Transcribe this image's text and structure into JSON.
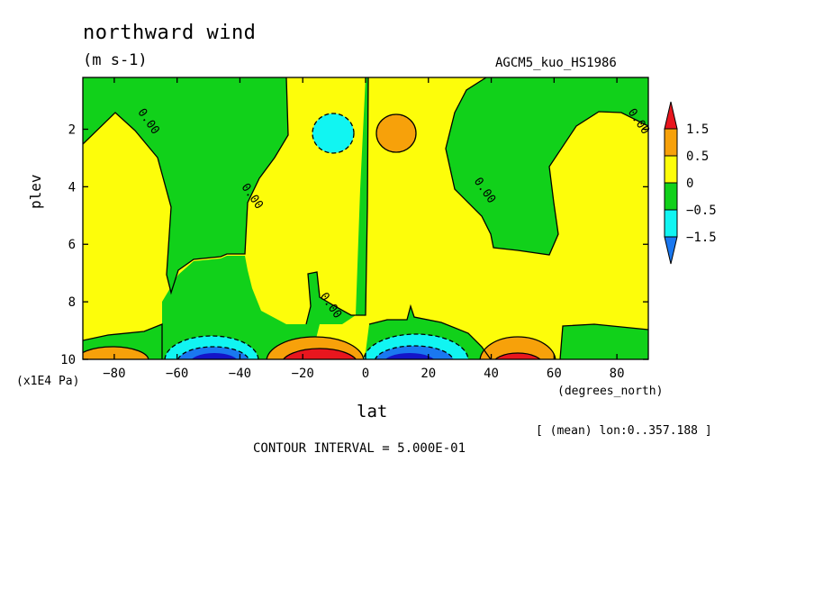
{
  "colors": {
    "c_pos15": "#e8161e",
    "c_pos10": "#f7a10a",
    "c_pos05": "#fdfd0a",
    "c_zero": "#11d11a",
    "c_neg05": "#11f5f2",
    "c_neg10": "#1a78f0",
    "c_neg15": "#1414c8"
  },
  "chart_data": {
    "type": "contour",
    "title": "northward wind",
    "units": "(m s-1)",
    "run_label": "AGCM5_kuo_HS1986",
    "xlabel": "lat",
    "ylabel": "plev",
    "x_unit_label": "(degrees_north)",
    "y_unit_label": "(x1E4 Pa)",
    "xlim": [
      -90,
      90
    ],
    "ylim": [
      10,
      0.2
    ],
    "x_ticks": [
      -80,
      -60,
      -40,
      -20,
      0,
      20,
      40,
      60,
      80
    ],
    "y_ticks": [
      2,
      4,
      6,
      8,
      10
    ],
    "contour_interval_text": "CONTOUR INTERVAL = 5.000E-01",
    "mean_text": "[ (mean) lon:0..357.188 ]",
    "contour_labels": [
      {
        "text": "0.00",
        "lat": -70,
        "plev": 1.8
      },
      {
        "text": "0.00",
        "lat": -37,
        "plev": 4.4
      },
      {
        "text": "0.00",
        "lat": -12,
        "plev": 8.2
      },
      {
        "text": "0.00",
        "lat": 37,
        "plev": 4.2
      },
      {
        "text": "0.00",
        "lat": 86,
        "plev": 1.8
      }
    ],
    "legend": {
      "levels": [
        "1.5",
        "0.5",
        "0",
        "-0.5",
        "-1.5"
      ]
    },
    "features": [
      {
        "lat": -50,
        "plev": 9.7,
        "value": -2.0
      },
      {
        "lat": -10,
        "plev": 9.7,
        "value": 2.0
      },
      {
        "lat": 10,
        "plev": 9.7,
        "value": -2.0
      },
      {
        "lat": 47,
        "plev": 9.7,
        "value": 1.5
      },
      {
        "lat": -8,
        "plev": 2.1,
        "value": -0.8
      },
      {
        "lat": 7,
        "plev": 2.0,
        "value": 0.8
      },
      {
        "lat": -75,
        "plev": 9.8,
        "value": 0.8
      }
    ]
  }
}
